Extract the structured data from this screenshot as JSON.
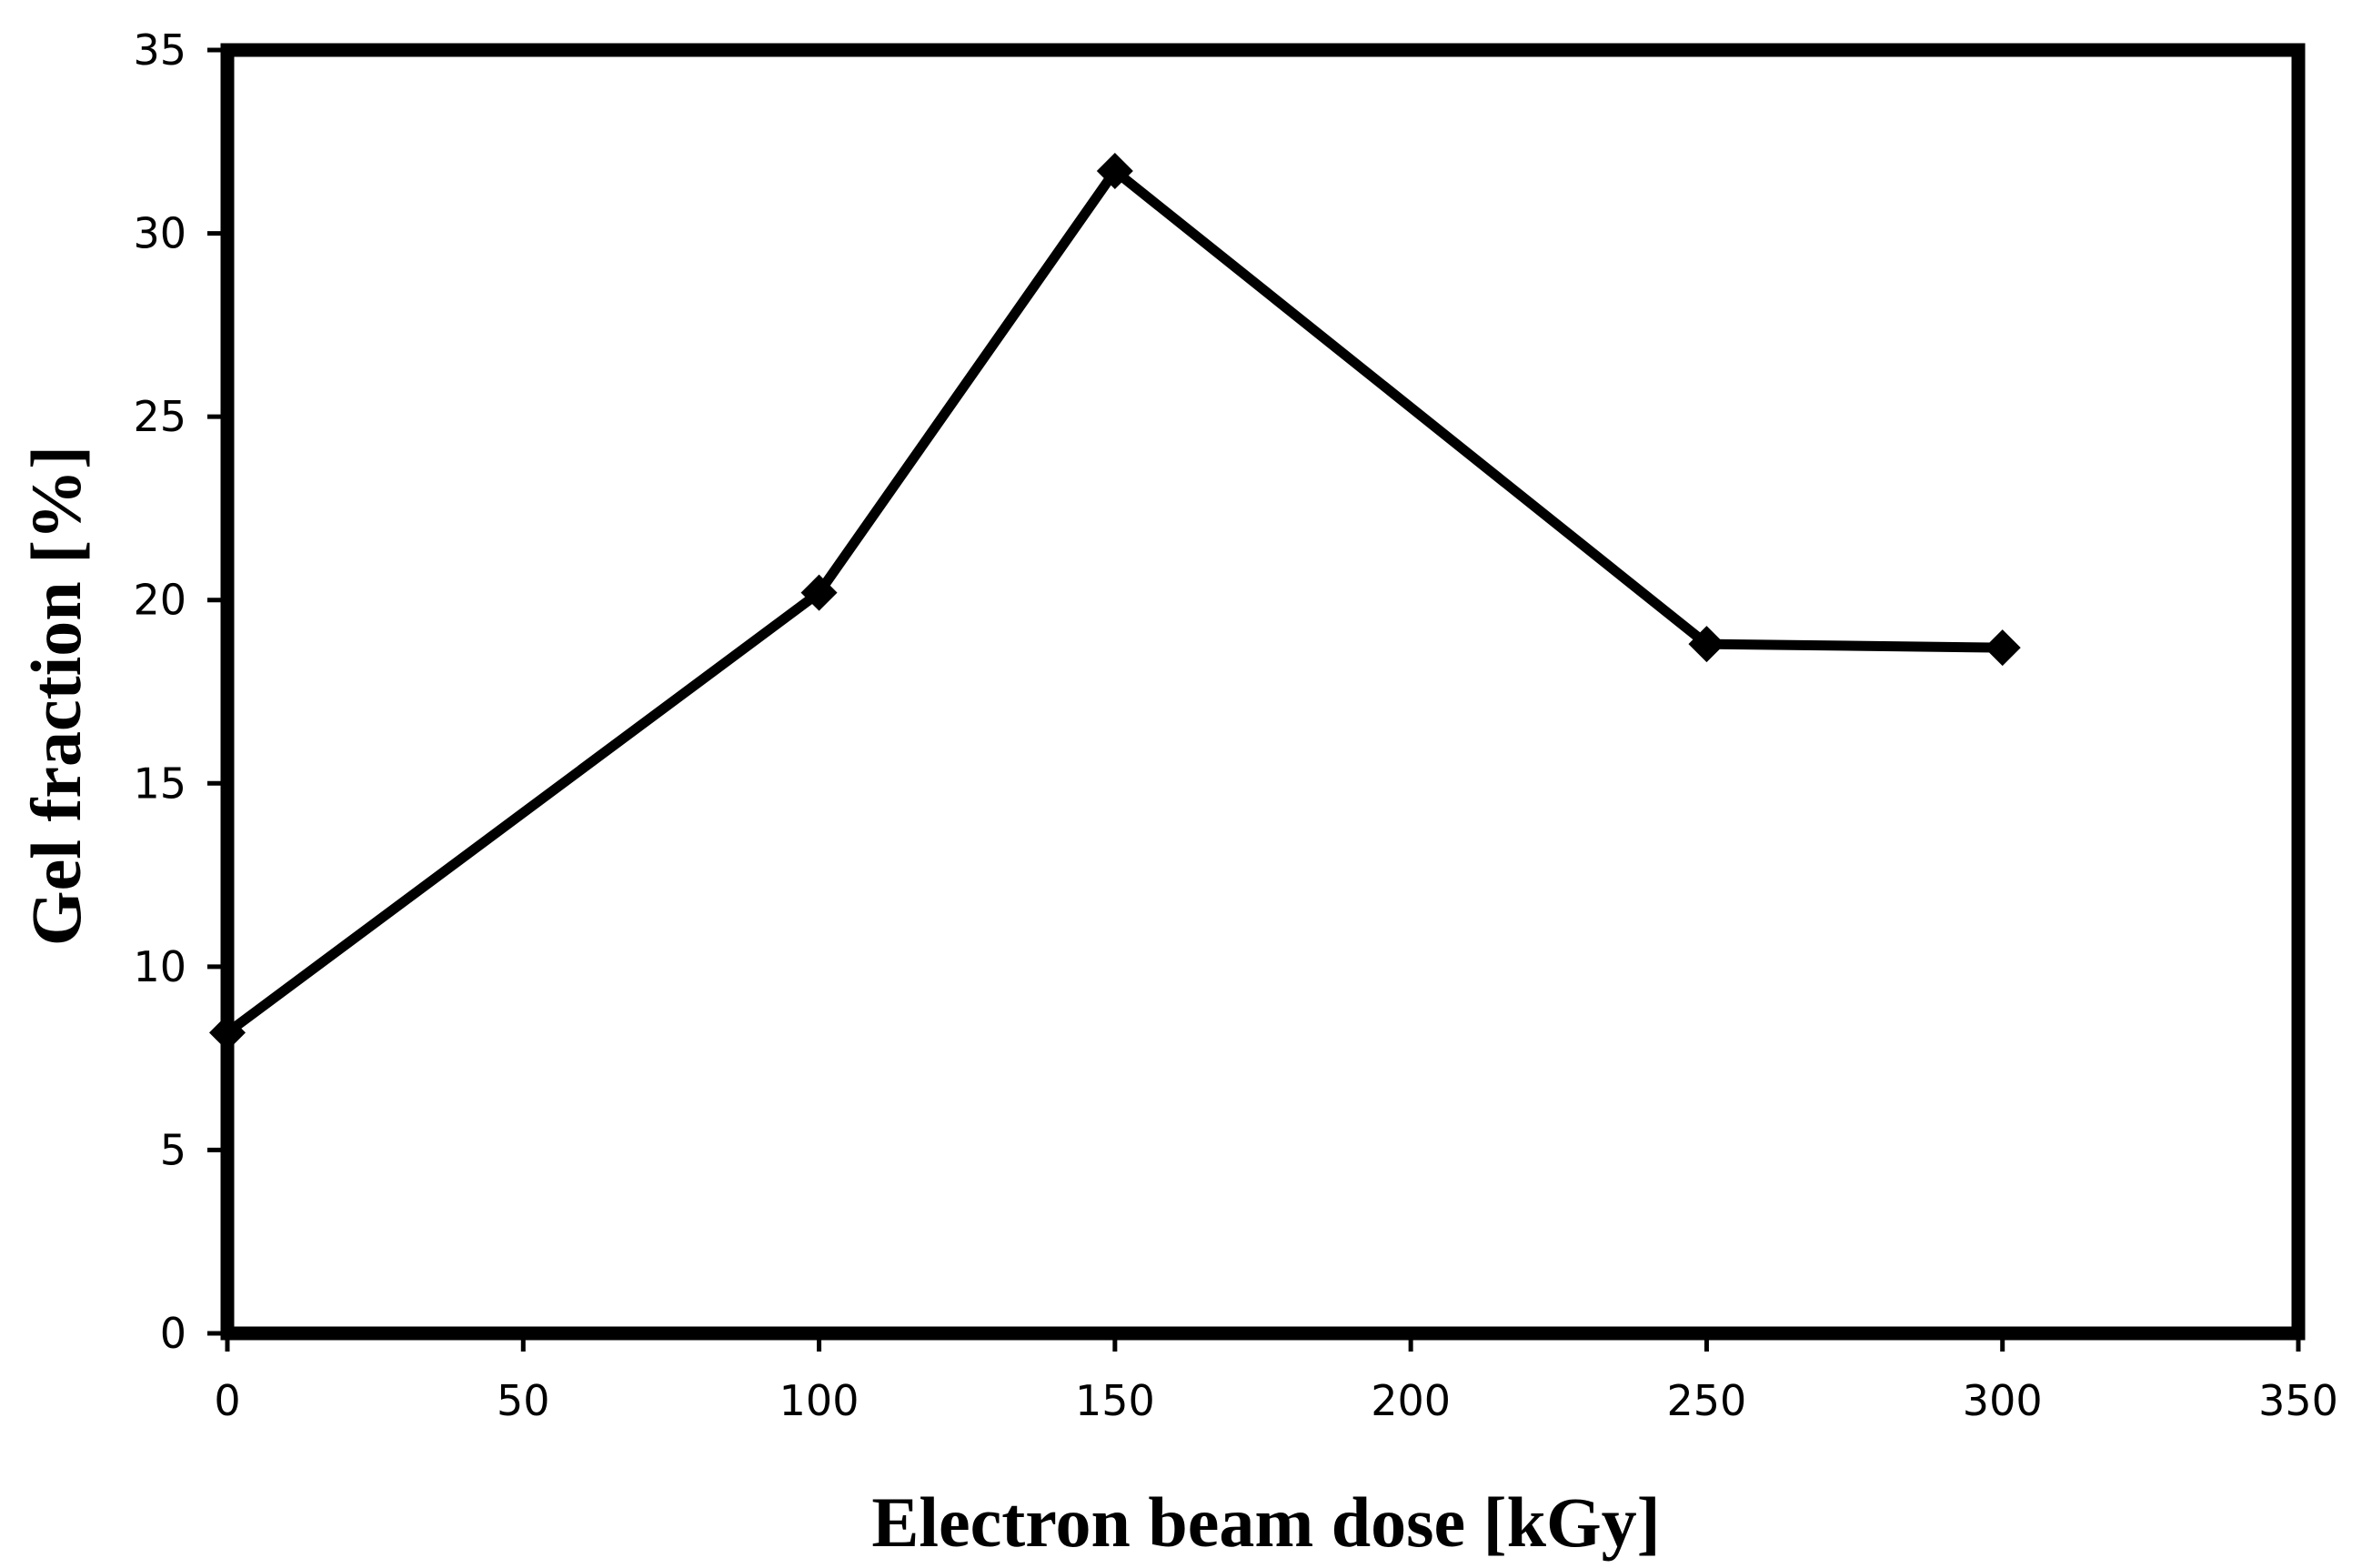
{
  "chart_data": {
    "type": "line",
    "title": "",
    "xlabel": "Electron beam dose [kGy]",
    "ylabel": "Gel fraction [%]",
    "xlim": [
      0,
      350
    ],
    "ylim": [
      0,
      35
    ],
    "xticks": [
      0,
      50,
      100,
      150,
      200,
      250,
      300,
      350
    ],
    "yticks": [
      0,
      5,
      10,
      15,
      20,
      25,
      30,
      35
    ],
    "xtick_labels": [
      "0",
      "50",
      "100",
      "150",
      "200",
      "250",
      "300",
      "350"
    ],
    "ytick_labels": [
      "0",
      "5",
      "10",
      "15",
      "20",
      "25",
      "30",
      "35"
    ],
    "grid": false,
    "legend": "none",
    "marker": "diamond",
    "series": [
      {
        "x": [
          0,
          100,
          150,
          250,
          300
        ],
        "y": [
          8.2,
          20.2,
          31.7,
          18.8,
          18.7
        ]
      }
    ],
    "colors": {
      "line": "#000000",
      "marker": "#000000",
      "frame": "#000000",
      "background": "#ffffff"
    }
  }
}
